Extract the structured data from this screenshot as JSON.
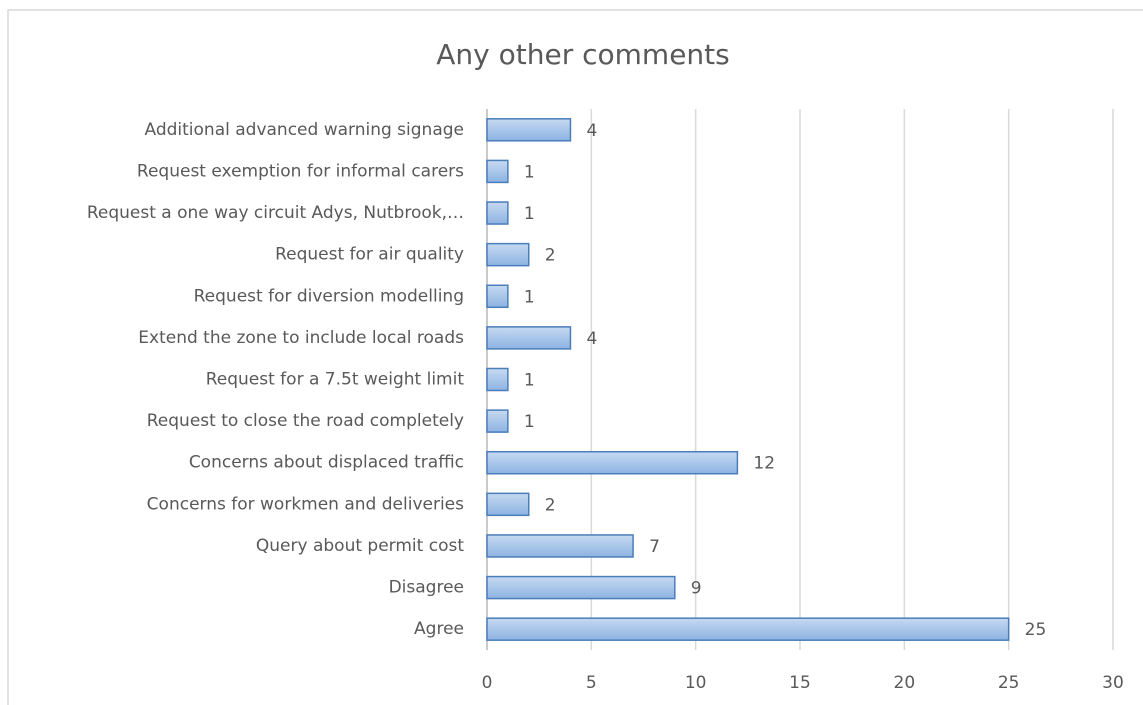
{
  "chart_data": {
    "type": "bar",
    "orientation": "horizontal",
    "title": "Any other comments",
    "categories": [
      "Additional advanced warning signage",
      "Request exemption for informal carers",
      "Request a one way circuit Adys, Nutbrook,…",
      "Request for air quality",
      "Request for diversion modelling",
      "Extend the zone to include local roads",
      "Request for a 7.5t weight limit",
      "Request to close the road completely",
      "Concerns about displaced traffic",
      "Concerns for workmen and deliveries",
      "Query about permit cost",
      "Disagree",
      "Agree"
    ],
    "values": [
      4,
      1,
      1,
      2,
      1,
      4,
      1,
      1,
      12,
      2,
      7,
      9,
      25
    ],
    "color": "#8db3e2",
    "xlim": [
      0,
      30
    ],
    "xticks": [
      0,
      5,
      10,
      15,
      20,
      25,
      30
    ],
    "grid": true
  }
}
